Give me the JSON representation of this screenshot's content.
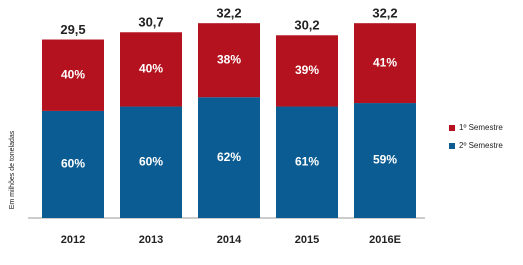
{
  "chart_data": {
    "type": "stacked-bar",
    "y_label": "Em milhões de toneladas",
    "categories": [
      "2012",
      "2013",
      "2014",
      "2015",
      "2016E"
    ],
    "values": [
      29.5,
      30.7,
      32.2,
      30.2,
      32.2
    ],
    "value_labels": [
      "29,5",
      "30,7",
      "32,2",
      "30,2",
      "32,2"
    ],
    "series": [
      {
        "name": "1º Semestre",
        "color": "#b3121e",
        "values": [
          40,
          40,
          38,
          39,
          41
        ],
        "value_labels": [
          "40%",
          "40%",
          "38%",
          "39%",
          "41%"
        ]
      },
      {
        "name": "2º Semestre",
        "color": "#0b5c92",
        "values": [
          60,
          60,
          62,
          61,
          59
        ],
        "value_labels": [
          "60%",
          "60%",
          "62%",
          "61%",
          "59%"
        ]
      }
    ]
  }
}
